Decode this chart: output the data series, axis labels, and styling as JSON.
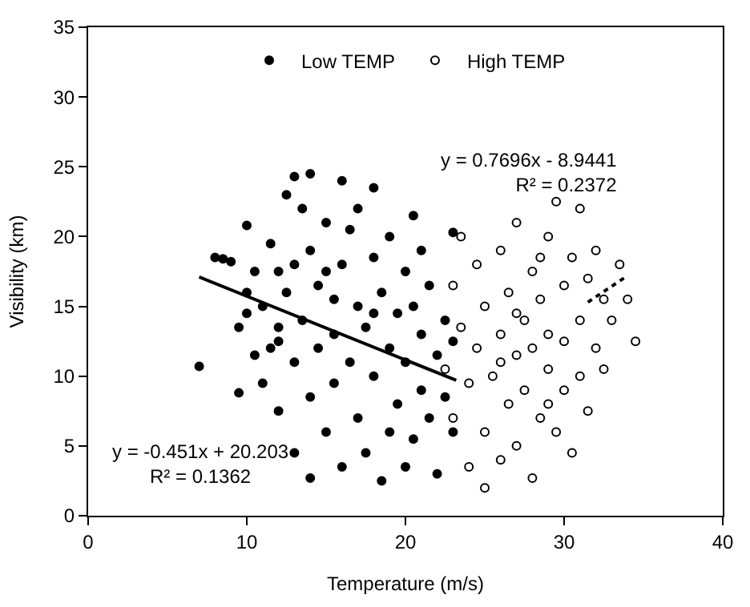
{
  "chart_data": {
    "type": "scatter",
    "xlabel": "Temperature (m/s)",
    "ylabel": "Visibility (km)",
    "xlim": [
      0,
      40
    ],
    "xticks": [
      0,
      10,
      20,
      30,
      40
    ],
    "ylim": [
      0,
      35
    ],
    "yticks": [
      0,
      5,
      10,
      15,
      20,
      25,
      30,
      35
    ],
    "legend": "top",
    "annotations": [
      "y = 0.7696x - 8.9441\nR² = 0.2372",
      "y = -0.451x + 20.203\nR² = 0.1362"
    ],
    "series": [
      {
        "name": "Low TEMP",
        "color": "#000000",
        "marker": "circle",
        "x": [
          7,
          8,
          8.5,
          9,
          9.5,
          9.5,
          10,
          10,
          10,
          10.5,
          10.5,
          11,
          11,
          11.5,
          11.5,
          12,
          12,
          12,
          12.5,
          12.5,
          13,
          13,
          13,
          13,
          13.5,
          13.5,
          14,
          14,
          14,
          14,
          14.5,
          14.5,
          15,
          15,
          15,
          15.5,
          15.5,
          16,
          16,
          16,
          16.5,
          16.5,
          17,
          17,
          17,
          17.5,
          17.5,
          18,
          18,
          18,
          18.5,
          18.5,
          19,
          19,
          19,
          19.5,
          19.5,
          20,
          20,
          20,
          20.5,
          20.5,
          21,
          21,
          21,
          21.5,
          21.5,
          22,
          22,
          22.5,
          22.5,
          23,
          23,
          23,
          20.5,
          15.5,
          12,
          18
        ],
        "values": [
          10.7,
          18.5,
          18.4,
          18.2,
          8.8,
          13.5,
          20.8,
          16,
          14.5,
          11.5,
          17.5,
          9.5,
          15,
          12,
          19.5,
          13.5,
          17.5,
          7.5,
          23,
          16,
          24.3,
          11,
          18,
          4.5,
          22,
          14,
          24.5,
          19,
          8.5,
          2.7,
          16.5,
          12,
          21,
          6,
          17.5,
          13,
          9.5,
          24,
          18,
          3.5,
          20.5,
          11,
          15,
          22,
          7,
          13.5,
          4.5,
          23.5,
          18.5,
          10,
          16,
          2.5,
          20,
          12,
          6,
          14.5,
          8,
          17.5,
          3.5,
          11,
          15,
          5.5,
          13,
          9,
          19,
          7,
          16.5,
          11.5,
          3,
          14,
          8.5,
          20.3,
          6,
          12.5,
          21.5,
          15.5,
          12.5,
          14.5
        ]
      },
      {
        "name": "High TEMP",
        "color": "#000000",
        "marker": "circle-open",
        "x": [
          22.5,
          23,
          23,
          23.5,
          23.5,
          24,
          24,
          24.5,
          24.5,
          25,
          25,
          25,
          25.5,
          26,
          26,
          26,
          26.5,
          26.5,
          27,
          27,
          27,
          27.5,
          27.5,
          28,
          28,
          28,
          28.5,
          28.5,
          29,
          29,
          29,
          29.5,
          29.5,
          30,
          30,
          30,
          30.5,
          30.5,
          31,
          31,
          31,
          31.5,
          31.5,
          32,
          32,
          32.5,
          32.5,
          33,
          33.5,
          34,
          34.5,
          27,
          28.5,
          26,
          29
        ],
        "values": [
          10.5,
          16.5,
          7,
          20,
          13.5,
          3.5,
          9.5,
          18,
          12,
          2,
          15,
          6,
          10,
          19,
          13,
          4,
          8,
          16,
          11.5,
          21,
          5,
          14,
          9,
          17.5,
          2.7,
          12,
          7,
          15.5,
          20,
          10.5,
          13,
          22.5,
          6,
          16.5,
          9,
          12.5,
          18.5,
          4.5,
          14,
          22,
          10,
          17,
          7.5,
          19,
          12,
          15.5,
          10.5,
          14,
          18,
          15.5,
          12.5,
          14.5,
          18.5,
          11,
          8
        ]
      },
      {
        "type": "line",
        "color": "#000000",
        "marker": "none",
        "line_style": "solid",
        "x": [
          7,
          23.2
        ],
        "values": [
          17.1,
          9.7
        ]
      },
      {
        "type": "line",
        "color": "#000000",
        "marker": "none",
        "line_style": "dotted",
        "x": [
          31.5,
          34
        ],
        "values": [
          15.3,
          17.2
        ]
      }
    ]
  }
}
